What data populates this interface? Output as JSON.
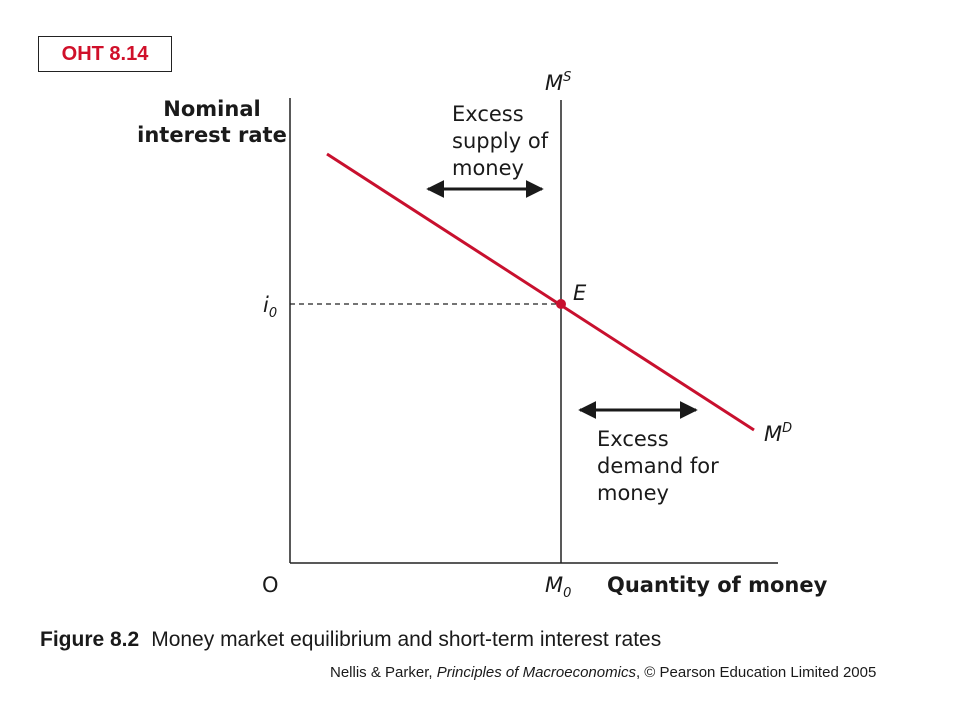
{
  "badge": "OHT 8.14",
  "diagram": {
    "y_axis_label": [
      "Nominal",
      "interest rate"
    ],
    "x_axis_label": "Quantity of money",
    "origin": "O",
    "supply_label": {
      "main": "M",
      "sup": "S"
    },
    "demand_label": {
      "main": "M",
      "sup": "D"
    },
    "interest_label": {
      "main": "i",
      "sub": "0"
    },
    "quantity_label": {
      "main": "M",
      "sub": "0"
    },
    "equilibrium_label": "E",
    "excess_supply": [
      "Excess",
      "supply of",
      "money"
    ],
    "excess_demand": [
      "Excess",
      "demand for",
      "money"
    ],
    "colors": {
      "demand_curve": "#c8102e",
      "axes": "#222222"
    }
  },
  "caption": {
    "number": "Figure 8.2",
    "text": "Money market equilibrium and short-term interest rates"
  },
  "credit": {
    "authors": "Nellis & Parker, ",
    "book": "Principles of Macroeconomics",
    "rest": ", © Pearson Education Limited 2005"
  }
}
